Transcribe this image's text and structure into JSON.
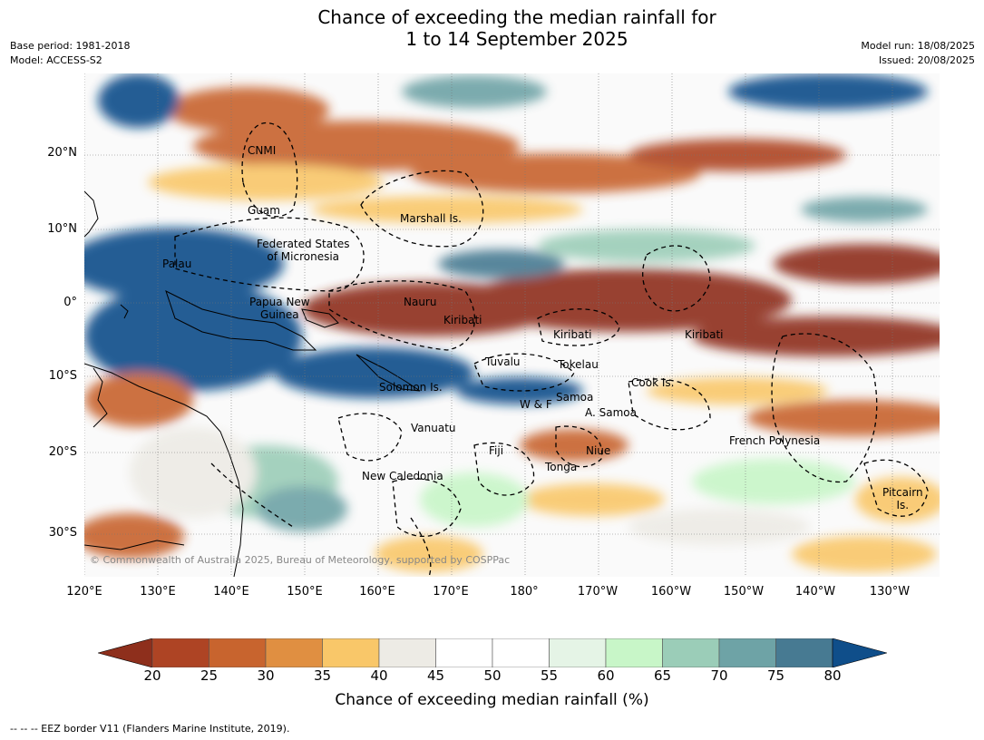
{
  "title_line1": "Chance of exceeding the median rainfall for",
  "title_line2": "1 to 14 September 2025",
  "meta": {
    "base_period": "Base period: 1981-2018",
    "model": "Model: ACCESS-S2",
    "model_run": "Model run: 18/08/2025",
    "issued": "Issued: 20/08/2025"
  },
  "copyright": "© Commonwealth of Australia 2025, Bureau of Meteorology, supported by COSPPac",
  "lat_labels": [
    "20°N",
    "10°N",
    "0°",
    "10°S",
    "20°S",
    "30°S"
  ],
  "lon_labels": [
    "120°E",
    "130°E",
    "140°E",
    "150°E",
    "160°E",
    "170°E",
    "180°",
    "170°W",
    "160°W",
    "150°W",
    "140°W",
    "130°W"
  ],
  "places": [
    {
      "name": "CNMI"
    },
    {
      "name": "Guam"
    },
    {
      "name": "Marshall Is."
    },
    {
      "name": "Federated States\nof Micronesia"
    },
    {
      "name": "Palau"
    },
    {
      "name": "Nauru"
    },
    {
      "name": "Papua New\nGuinea"
    },
    {
      "name": "Kiribati"
    },
    {
      "name": "Kiribati"
    },
    {
      "name": "Kiribati"
    },
    {
      "name": "Tuvalu"
    },
    {
      "name": "Tokelau"
    },
    {
      "name": "Cook Is."
    },
    {
      "name": "Solomon Is."
    },
    {
      "name": "Samoa"
    },
    {
      "name": "W & F"
    },
    {
      "name": "A. Samoa"
    },
    {
      "name": "Vanuatu"
    },
    {
      "name": "Fiji"
    },
    {
      "name": "Niue"
    },
    {
      "name": "French Polynesia"
    },
    {
      "name": "Tonga"
    },
    {
      "name": "New Caledonia"
    },
    {
      "name": "Pitcairn\nIs."
    }
  ],
  "colorbar": {
    "ticks": [
      "20",
      "25",
      "30",
      "35",
      "40",
      "45",
      "50",
      "55",
      "60",
      "65",
      "70",
      "75",
      "80"
    ],
    "colors": [
      "#8e2f1c",
      "#ae4424",
      "#c8642e",
      "#e08f41",
      "#f9c769",
      "#edebe5",
      "#ffffff",
      "#ffffff",
      "#e5f4e6",
      "#c8f6c8",
      "#9bcdb8",
      "#6ea3a6",
      "#477a92",
      "#0f4e8a"
    ],
    "title": "Chance of exceeding median rainfall (%)"
  },
  "footer": "--  --  -- EEZ border V11 (Flanders Marine Institute, 2019)."
}
